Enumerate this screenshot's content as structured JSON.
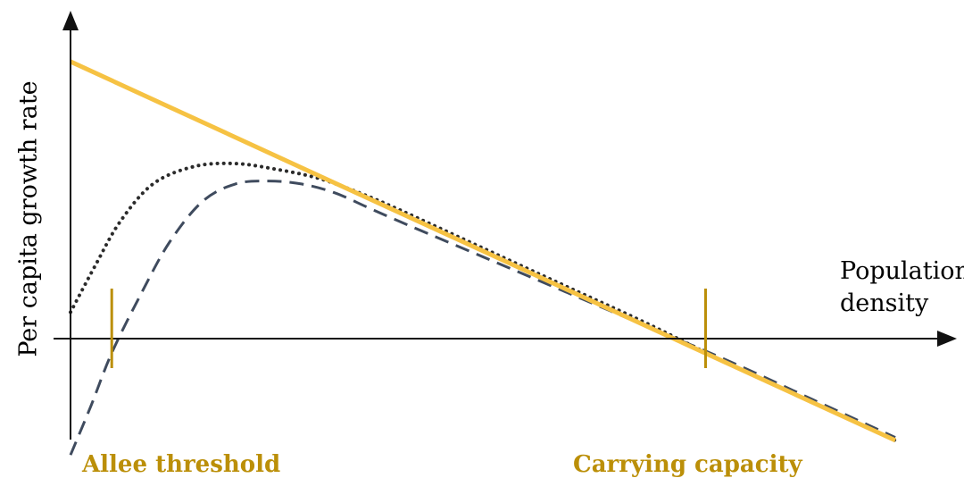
{
  "chart_data": {
    "type": "line",
    "xlabel": [
      "Population",
      "density"
    ],
    "ylabel": "Per capita growth rate",
    "xlim": [
      0,
      10
    ],
    "ylim": [
      -0.38,
      1.15
    ],
    "grid": false,
    "legend": "none",
    "series": [
      {
        "style": "solid",
        "color": "#F6C243",
        "x": [
          0,
          10
        ],
        "y": [
          1.0,
          -0.3
        ]
      },
      {
        "style": "dotted",
        "color": "#2b2b2b",
        "x": [
          0,
          0.3,
          0.6,
          1.0,
          1.5,
          2.0,
          2.5,
          3.0,
          3.5,
          4.0,
          5.0,
          6.0,
          7.0,
          8.0,
          9.0,
          10.0
        ],
        "y": [
          0.14,
          0.3,
          0.45,
          0.58,
          0.64,
          0.65,
          0.63,
          0.6,
          0.55,
          0.49,
          0.36,
          0.23,
          0.1,
          -0.04,
          -0.17,
          -0.3
        ]
      },
      {
        "style": "dashed",
        "color": "#3f4b5e",
        "x": [
          0,
          0.25,
          0.5,
          0.85,
          1.2,
          1.6,
          2.0,
          2.4,
          2.8,
          3.2,
          3.6,
          4.0,
          5.0,
          6.0,
          7.0,
          8.0,
          9.0,
          10.0
        ],
        "y": [
          -0.35,
          -0.18,
          0.0,
          0.2,
          0.38,
          0.52,
          0.58,
          0.59,
          0.58,
          0.55,
          0.5,
          0.45,
          0.33,
          0.21,
          0.09,
          -0.03,
          -0.16,
          -0.29
        ]
      }
    ],
    "markers": [
      {
        "label": "Allee threshold",
        "x": 0.5,
        "color": "#BB8F08"
      },
      {
        "label": "Carrying capacity",
        "x": 7.7,
        "color": "#BB8F08"
      }
    ]
  }
}
